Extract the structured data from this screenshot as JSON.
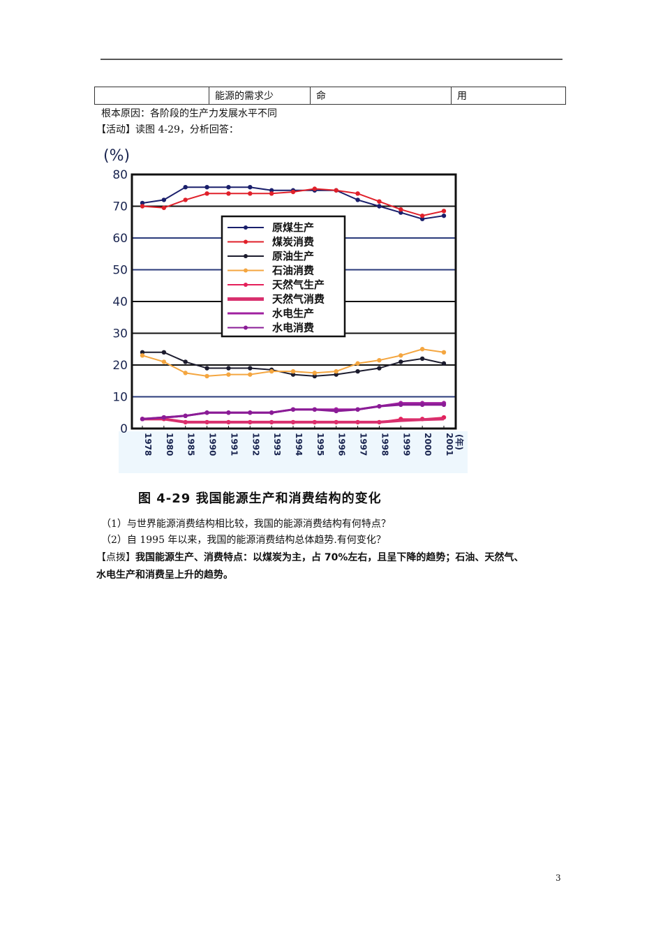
{
  "table_row": {
    "cells": [
      "",
      "能源的需求少",
      "命",
      "用"
    ]
  },
  "text": {
    "root_cause": "根本原因：各阶段的生产力发展水平不同",
    "activity": "【活动】读图 4-29，分析回答：",
    "q1": "（1）与世界能源消费结构相比较，我国的能源消费结构有何特点？",
    "q2": "（2）自 1995 年以来，我国的能源消费结构总体趋势.有何变化？",
    "hint_label": "【点拨】",
    "hint_line1": "我国能源生产、消费特点：以煤炭为主，占 70%左右，且呈下降的趋势；石油、天然气、",
    "hint_line2": "水电生产和消费呈上升的趋势。"
  },
  "figure": {
    "caption": "图 4-29    我国能源生产和消费结构的变化"
  },
  "page_number": "3",
  "chart_data": {
    "type": "line",
    "title": "图 4-29 我国能源生产和消费结构的变化",
    "ylabel": "(%)",
    "xlabel": "(年)",
    "ylim": [
      0,
      80
    ],
    "yticks": [
      "0",
      "10",
      "20",
      "30",
      "40",
      "50",
      "60",
      "70",
      "80"
    ],
    "grid": true,
    "legend_position": "center-left inside",
    "categories": [
      "1978",
      "1980",
      "1985",
      "1990",
      "1991",
      "1992",
      "1993",
      "1994",
      "1995",
      "1996",
      "1997",
      "1998",
      "1999",
      "2000",
      "2001"
    ],
    "series": [
      {
        "name": "原煤生产",
        "color": "#1a1f6b",
        "values": [
          71,
          72,
          76,
          76,
          76,
          76,
          75,
          75,
          75,
          75,
          72,
          70,
          68,
          66,
          67
        ]
      },
      {
        "name": "煤炭消费",
        "color": "#e0202a",
        "values": [
          70,
          69.5,
          72,
          74,
          74,
          74,
          74,
          74.5,
          75.5,
          75,
          74,
          71.5,
          69,
          67,
          68.5
        ]
      },
      {
        "name": "原油生产",
        "color": "#1c1c2e",
        "values": [
          24,
          24,
          21,
          19,
          19,
          19,
          18.5,
          17,
          16.5,
          17,
          18,
          19,
          21,
          22,
          20.5
        ]
      },
      {
        "name": "石油消费",
        "color": "#f4a640",
        "values": [
          23,
          21,
          17.5,
          16.5,
          17,
          17,
          18,
          18,
          17.5,
          18,
          20.5,
          21.5,
          23,
          25,
          24
        ]
      },
      {
        "name": "天然气生产",
        "color": "#e4205a",
        "values": [
          3,
          3,
          2,
          2,
          2,
          2,
          2,
          2,
          2,
          2,
          2,
          2,
          3,
          3,
          3.5
        ]
      },
      {
        "name": "天然气消费",
        "color": "#d8306e",
        "values": [
          3,
          3,
          2,
          2,
          2,
          2,
          2,
          2,
          2,
          2,
          2,
          2,
          2.5,
          2.8,
          3
        ]
      },
      {
        "name": "水电生产",
        "color": "#a020a0",
        "values": [
          3,
          3.5,
          4,
          5,
          5,
          5,
          5,
          6,
          6,
          6,
          6,
          7,
          8,
          8,
          8
        ]
      },
      {
        "name": "水电消费",
        "color": "#8a1c96",
        "values": [
          3,
          3.5,
          4,
          5,
          5,
          5,
          5,
          6,
          6,
          5.5,
          6,
          7,
          7.5,
          7.5,
          7.5
        ]
      }
    ]
  }
}
